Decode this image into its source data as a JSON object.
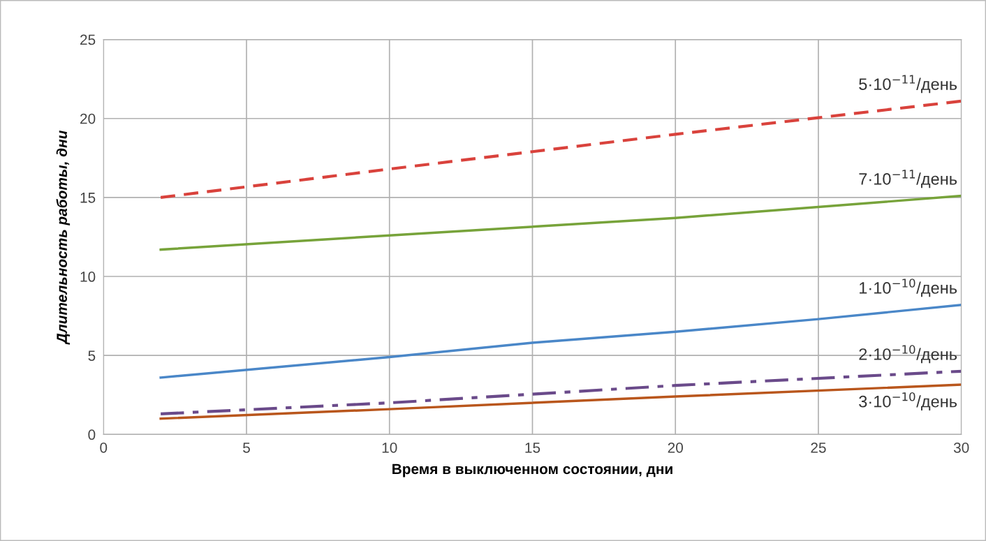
{
  "chart_data": {
    "type": "line",
    "xlabel": "Время в выключенном состоянии, дни",
    "ylabel": "Длительность работы, дни",
    "xlim": [
      0,
      30
    ],
    "xticks": [
      0,
      5,
      10,
      15,
      20,
      25,
      30
    ],
    "ylim": [
      0,
      25
    ],
    "yticks": [
      0,
      5,
      10,
      15,
      20,
      25
    ],
    "grid": true,
    "legend": false,
    "series": [
      {
        "name": "5·10$^{−11}$/день",
        "color": "#d9423c",
        "line_style": "dashed",
        "x": [
          2,
          10,
          15,
          20,
          25,
          30
        ],
        "values": [
          15.0,
          16.8,
          17.9,
          19.0,
          20.05,
          21.1
        ]
      },
      {
        "name": "7·10$^{−11}$/день",
        "color": "#77a33a",
        "line_style": "solid",
        "x": [
          2,
          10,
          20,
          30
        ],
        "values": [
          11.7,
          12.6,
          13.7,
          15.1
        ]
      },
      {
        "name": "1·10$^{−10}$/день",
        "color": "#4a87c8",
        "line_style": "solid",
        "x": [
          2,
          10,
          15,
          20,
          25,
          30
        ],
        "values": [
          3.6,
          4.9,
          5.8,
          6.5,
          7.3,
          8.2
        ]
      },
      {
        "name": "2·10$^{−10}$/день",
        "color": "#6a4a8a",
        "line_style": "dashdot",
        "x": [
          2,
          10,
          20,
          30
        ],
        "values": [
          1.3,
          2.0,
          3.1,
          4.0
        ]
      },
      {
        "name": "3·10$^{−10}$/день",
        "color": "#b9561c",
        "line_style": "solid",
        "x": [
          2,
          10,
          20,
          30
        ],
        "values": [
          1.0,
          1.6,
          2.4,
          3.15
        ]
      }
    ]
  }
}
